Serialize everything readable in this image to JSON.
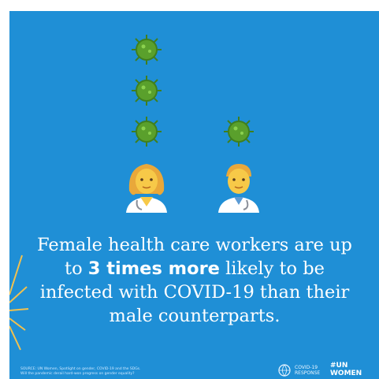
{
  "headline": {
    "line1": "Female health care workers are up",
    "line2_pre": "to ",
    "line2_bold": "3 times more",
    "line2_post": " likely to be",
    "line3": "infected with COVID-19 than their",
    "line4": "male counterparts."
  },
  "source_line1": "SOURCE: UN Women, Spotlight on gender, COVID-19 and the SDGs.",
  "source_line2": "Will the pandemic derail hard-won progress on gender equality?",
  "logos": {
    "covid_response_line1": "COVID-19",
    "covid_response_line2": "RESPONSE",
    "un_women_line1": "#UN",
    "un_women_line2": "WOMEN"
  },
  "colors": {
    "background": "#1f8fd6",
    "virus": "#5aa02c",
    "text": "#ffffff"
  },
  "icons": [
    "virus-icon",
    "female-health-worker-icon",
    "male-health-worker-icon"
  ]
}
